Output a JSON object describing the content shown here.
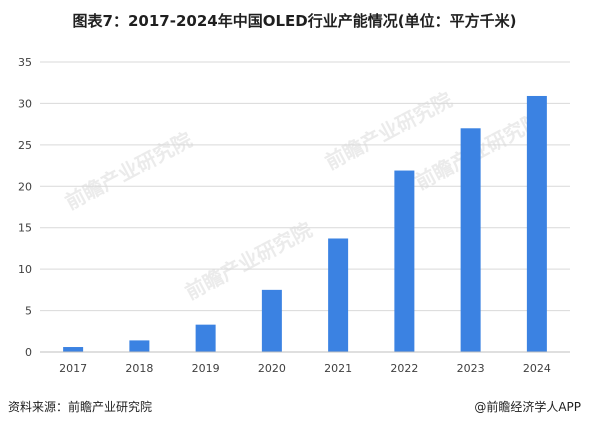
{
  "title": "图表7：2017-2024年中国OLED行业产能情况(单位：平方千米)",
  "source": "资料来源：前瞻产业研究院",
  "credit": "@前瞻经济学人APP",
  "watermark": "前瞻产业研究院",
  "chart_data": {
    "type": "bar",
    "categories": [
      "2017",
      "2018",
      "2019",
      "2020",
      "2021",
      "2022",
      "2023",
      "2024"
    ],
    "series": [
      {
        "values": [
          0.6,
          1.4,
          3.3,
          7.5,
          13.7,
          21.9,
          27.0,
          30.9
        ],
        "color": "#3b82e2"
      }
    ],
    "ylim": [
      0,
      35
    ],
    "yticks": [
      0,
      5,
      10,
      15,
      20,
      25,
      30,
      35
    ],
    "grid": true,
    "gridColor": "#d9d9d9",
    "axisColor": "#bfbfbf",
    "title": "",
    "xlabel": "",
    "ylabel": ""
  }
}
